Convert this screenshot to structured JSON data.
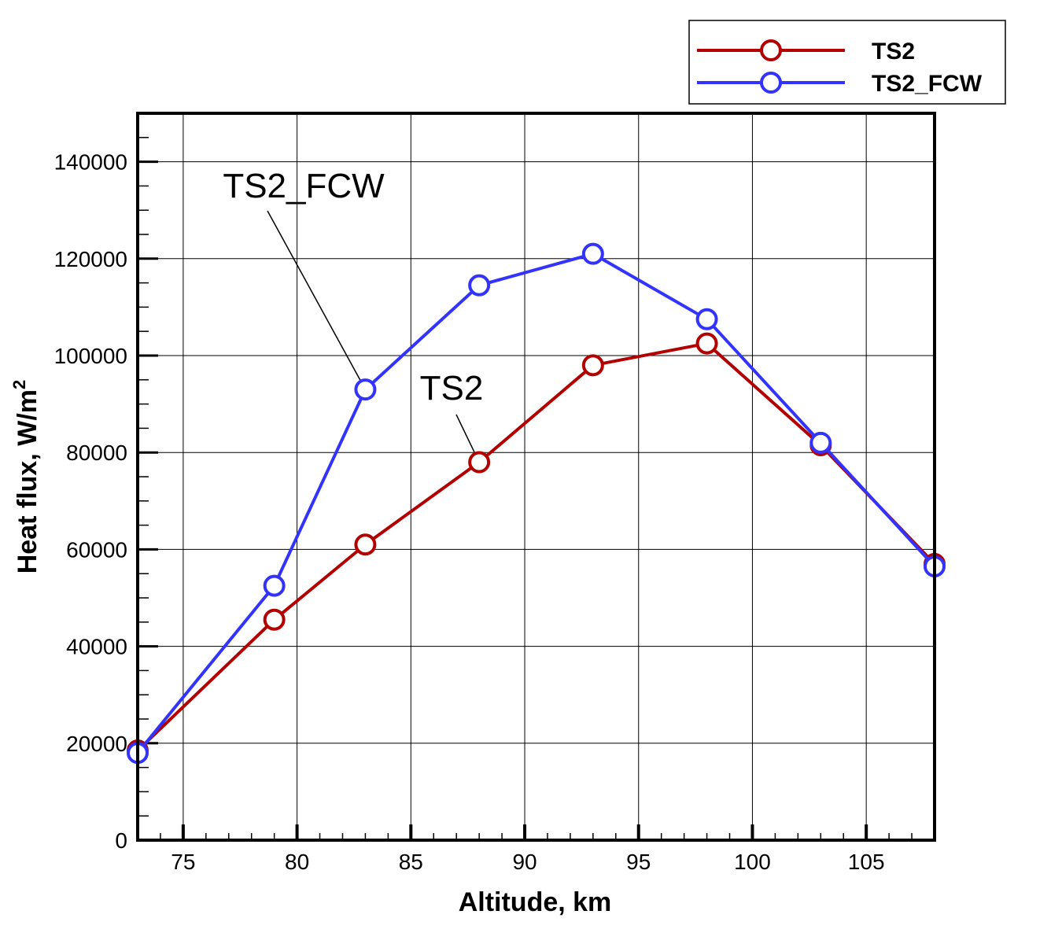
{
  "chart_data": {
    "type": "line",
    "xlabel": "Altitude, km",
    "ylabel": "Heat flux, W/m",
    "ylabel_sup": "2",
    "xlim": [
      73,
      108
    ],
    "ylim": [
      0,
      150000
    ],
    "xticks": [
      75,
      80,
      85,
      90,
      95,
      100,
      105
    ],
    "yticks": [
      0,
      20000,
      40000,
      60000,
      80000,
      100000,
      120000,
      140000
    ],
    "grid": true,
    "legend_position": "top-right, outside plot",
    "series": [
      {
        "name": "TS2",
        "color": "#b30000",
        "x": [
          73,
          79,
          83,
          88,
          93,
          98,
          103,
          108
        ],
        "y": [
          18500,
          45500,
          61000,
          78000,
          98000,
          102500,
          81500,
          57000
        ]
      },
      {
        "name": "TS2_FCW",
        "color": "#3333ff",
        "x": [
          73,
          79,
          83,
          88,
          93,
          98,
          103,
          108
        ],
        "y": [
          18000,
          52500,
          93000,
          114500,
          121000,
          107500,
          82000,
          56500
        ]
      }
    ],
    "annotations": [
      {
        "text": "TS2_FCW",
        "series": "TS2_FCW",
        "point_x": 83,
        "point_y": 93000
      },
      {
        "text": "TS2",
        "series": "TS2",
        "point_x": 88,
        "point_y": 78000
      }
    ]
  }
}
